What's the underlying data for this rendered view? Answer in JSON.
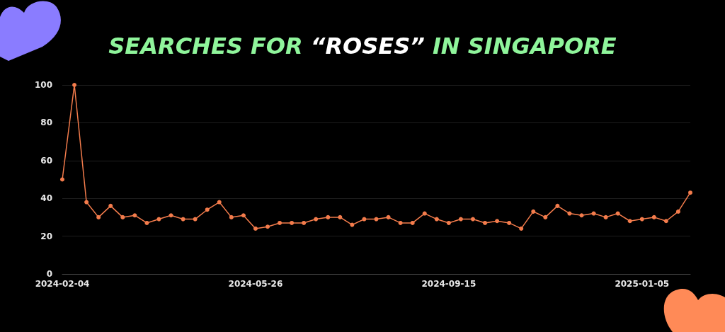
{
  "chart_data": {
    "type": "line",
    "title": "SEARCHES FOR “ROSES” IN SINGAPORE",
    "x": [
      "2024-02-04",
      "2024-02-11",
      "2024-02-18",
      "2024-02-25",
      "2024-03-03",
      "2024-03-10",
      "2024-03-17",
      "2024-03-24",
      "2024-03-31",
      "2024-04-07",
      "2024-04-14",
      "2024-04-21",
      "2024-04-28",
      "2024-05-05",
      "2024-05-12",
      "2024-05-19",
      "2024-05-26",
      "2024-06-02",
      "2024-06-09",
      "2024-06-16",
      "2024-06-23",
      "2024-06-30",
      "2024-07-07",
      "2024-07-14",
      "2024-07-21",
      "2024-07-28",
      "2024-08-04",
      "2024-08-11",
      "2024-08-18",
      "2024-08-25",
      "2024-09-01",
      "2024-09-08",
      "2024-09-15",
      "2024-09-22",
      "2024-09-29",
      "2024-10-06",
      "2024-10-13",
      "2024-10-20",
      "2024-10-27",
      "2024-11-03",
      "2024-11-10",
      "2024-11-17",
      "2024-11-24",
      "2024-12-01",
      "2024-12-08",
      "2024-12-15",
      "2024-12-22",
      "2024-12-29",
      "2025-01-05",
      "2025-01-12",
      "2025-01-19",
      "2025-01-26",
      "2025-02-02"
    ],
    "series": [
      {
        "color": "#f47c4c",
        "values": [
          50,
          100,
          38,
          30,
          36,
          30,
          31,
          27,
          29,
          31,
          29,
          29,
          34,
          38,
          30,
          31,
          24,
          25,
          27,
          27,
          27,
          29,
          30,
          30,
          26,
          29,
          29,
          30,
          27,
          27,
          32,
          29,
          27,
          29,
          29,
          27,
          28,
          27,
          24,
          33,
          30,
          36,
          32,
          31,
          32,
          30,
          32,
          28,
          29,
          30,
          28,
          33,
          43
        ]
      }
    ],
    "xlim": [
      "2024-02-04",
      "2025-02-02"
    ],
    "xticks": [
      "2024-02-04",
      "2024-05-26",
      "2024-09-15",
      "2025-01-05"
    ],
    "ylim": [
      0,
      100
    ],
    "yticks": [
      0,
      20,
      40,
      60,
      80,
      100
    ],
    "grid": "y",
    "marker": "circle",
    "line_style": "solid"
  }
}
